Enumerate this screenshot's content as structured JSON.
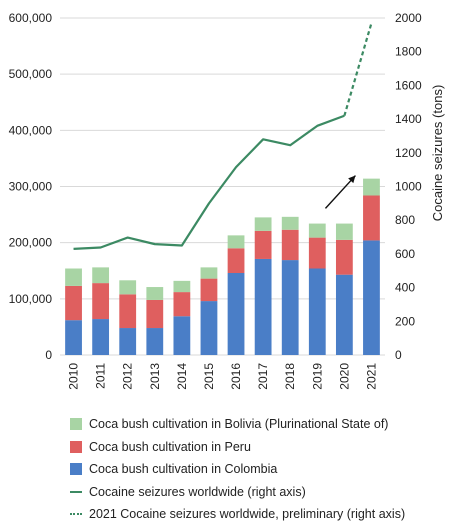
{
  "chart_data": {
    "type": "bar",
    "categories": [
      "2010",
      "2011",
      "2012",
      "2013",
      "2014",
      "2015",
      "2016",
      "2017",
      "2018",
      "2019",
      "2020",
      "2021"
    ],
    "series": [
      {
        "name": "Coca bush cultivation in Colombia",
        "type": "stacked-bar",
        "axis": "left",
        "color": "#4a7ec7",
        "values": [
          62000,
          64000,
          48000,
          48000,
          69000,
          96000,
          146000,
          171000,
          169000,
          154000,
          143000,
          204000
        ]
      },
      {
        "name": "Coca bush cultivation in Peru",
        "type": "stacked-bar",
        "axis": "left",
        "color": "#df5f5f",
        "values": [
          61000,
          64000,
          60000,
          50000,
          43000,
          40000,
          44000,
          50000,
          54000,
          55000,
          62000,
          80000
        ]
      },
      {
        "name": "Coca bush cultivation in Bolivia (Plurinational State of)",
        "type": "stacked-bar",
        "axis": "left",
        "color": "#a8d4a4",
        "values": [
          31000,
          28000,
          25000,
          23000,
          20000,
          20000,
          23000,
          24000,
          23000,
          25000,
          29000,
          30000
        ]
      },
      {
        "name": "Cocaine seizures worldwide (right axis)",
        "type": "line",
        "axis": "right",
        "color": "#3c8a63",
        "x": [
          "2010",
          "2011",
          "2012",
          "2013",
          "2014",
          "2015",
          "2016",
          "2017",
          "2018",
          "2019",
          "2020"
        ],
        "values": [
          630,
          638,
          697,
          658,
          650,
          900,
          1115,
          1280,
          1245,
          1360,
          1420
        ]
      },
      {
        "name": "2021 Cocaine seizures worldwide, preliminary (right axis)",
        "type": "dashed-line",
        "axis": "right",
        "color": "#3c8a63",
        "x": [
          "2020",
          "2021"
        ],
        "values": [
          1420,
          1970
        ]
      }
    ],
    "y_left": {
      "min": 0,
      "max": 600000,
      "ticks": [
        "0",
        "100,000",
        "200,000",
        "300,000",
        "400,000",
        "500,000",
        "600,000"
      ]
    },
    "y_right": {
      "label": "Cocaine seizures (tons)",
      "min": 0,
      "max": 2000,
      "ticks": [
        "0",
        "200",
        "400",
        "600",
        "800",
        "1000",
        "1200",
        "1400",
        "1600",
        "1800",
        "2000"
      ]
    },
    "grid": "horizontal",
    "legend_position": "bottom",
    "annotations": [
      {
        "type": "arrow",
        "category": "2021",
        "direction": "up-right"
      }
    ]
  },
  "legend": [
    {
      "label": "Coca bush cultivation in Bolivia (Plurinational State of)",
      "kind": "box",
      "color": "#a8d4a4"
    },
    {
      "label": "Coca bush cultivation in Peru",
      "kind": "box",
      "color": "#df5f5f"
    },
    {
      "label": "Coca bush cultivation in Colombia",
      "kind": "box",
      "color": "#4a7ec7"
    },
    {
      "label": "Cocaine seizures worldwide (right axis)",
      "kind": "line",
      "color": "#3c8a63"
    },
    {
      "label": "2021 Cocaine seizures worldwide, preliminary (right axis)",
      "kind": "dashed",
      "color": "#3c8a63"
    }
  ]
}
